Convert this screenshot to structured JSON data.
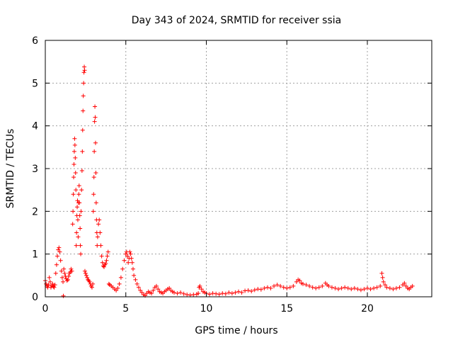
{
  "chart_data": {
    "type": "scatter",
    "title": "Day 343 of 2024, SRMTID for receiver ssia",
    "xlabel": "GPS time / hours",
    "ylabel": "SRMTID / TECUs",
    "xlim": [
      0,
      24
    ],
    "ylim": [
      0,
      6
    ],
    "xticks": [
      0,
      5,
      10,
      15,
      20
    ],
    "yticks": [
      0,
      1,
      2,
      3,
      4,
      5,
      6
    ],
    "grid": true,
    "marker": "+",
    "series": [
      {
        "name": "SRMTID",
        "color": "#ff0000",
        "points": [
          [
            0.0,
            0.38
          ],
          [
            0.05,
            0.3
          ],
          [
            0.1,
            0.25
          ],
          [
            0.15,
            0.22
          ],
          [
            0.2,
            0.28
          ],
          [
            0.25,
            0.45
          ],
          [
            0.3,
            0.35
          ],
          [
            0.35,
            0.22
          ],
          [
            0.4,
            0.26
          ],
          [
            0.45,
            0.3
          ],
          [
            0.5,
            0.24
          ],
          [
            0.55,
            0.22
          ],
          [
            0.6,
            0.28
          ],
          [
            0.65,
            0.55
          ],
          [
            0.7,
            0.75
          ],
          [
            0.75,
            0.95
          ],
          [
            0.8,
            1.1
          ],
          [
            0.85,
            1.15
          ],
          [
            0.9,
            1.05
          ],
          [
            0.95,
            0.85
          ],
          [
            1.0,
            0.6
          ],
          [
            1.05,
            0.45
          ],
          [
            1.1,
            0.35
          ],
          [
            1.12,
            0.02
          ],
          [
            1.15,
            0.65
          ],
          [
            1.2,
            0.55
          ],
          [
            1.25,
            0.48
          ],
          [
            1.3,
            0.42
          ],
          [
            1.35,
            0.38
          ],
          [
            1.4,
            0.4
          ],
          [
            1.45,
            0.48
          ],
          [
            1.5,
            0.55
          ],
          [
            1.55,
            0.58
          ],
          [
            1.6,
            0.65
          ],
          [
            1.65,
            0.6
          ],
          [
            1.7,
            1.7
          ],
          [
            1.72,
            2.0
          ],
          [
            1.74,
            2.4
          ],
          [
            1.76,
            2.8
          ],
          [
            1.78,
            3.1
          ],
          [
            1.8,
            3.4
          ],
          [
            1.82,
            3.7
          ],
          [
            1.84,
            3.55
          ],
          [
            1.86,
            3.25
          ],
          [
            1.88,
            2.9
          ],
          [
            1.9,
            2.5
          ],
          [
            1.92,
            1.2
          ],
          [
            1.94,
            1.5
          ],
          [
            1.96,
            1.9
          ],
          [
            1.98,
            2.1
          ],
          [
            2.0,
            2.25
          ],
          [
            2.02,
            1.8
          ],
          [
            2.04,
            1.4
          ],
          [
            2.06,
            2.2
          ],
          [
            2.08,
            2.4
          ],
          [
            2.1,
            2.6
          ],
          [
            2.12,
            2.2
          ],
          [
            2.14,
            1.9
          ],
          [
            2.16,
            1.6
          ],
          [
            2.18,
            1.2
          ],
          [
            2.2,
            1.0
          ],
          [
            2.22,
            2.0
          ],
          [
            2.25,
            2.5
          ],
          [
            2.28,
            2.95
          ],
          [
            2.3,
            3.4
          ],
          [
            2.32,
            3.9
          ],
          [
            2.34,
            4.35
          ],
          [
            2.36,
            4.7
          ],
          [
            2.38,
            5.0
          ],
          [
            2.4,
            5.25
          ],
          [
            2.42,
            5.38
          ],
          [
            2.44,
            5.3
          ],
          [
            2.46,
            0.6
          ],
          [
            2.5,
            0.55
          ],
          [
            2.55,
            0.5
          ],
          [
            2.6,
            0.45
          ],
          [
            2.65,
            0.4
          ],
          [
            2.7,
            0.38
          ],
          [
            2.75,
            0.35
          ],
          [
            2.8,
            0.3
          ],
          [
            2.85,
            0.25
          ],
          [
            2.9,
            0.22
          ],
          [
            2.95,
            0.3
          ],
          [
            2.98,
            2.0
          ],
          [
            3.0,
            2.4
          ],
          [
            3.02,
            2.8
          ],
          [
            3.04,
            3.4
          ],
          [
            3.06,
            4.1
          ],
          [
            3.08,
            4.45
          ],
          [
            3.1,
            4.2
          ],
          [
            3.12,
            3.6
          ],
          [
            3.14,
            2.9
          ],
          [
            3.16,
            2.2
          ],
          [
            3.18,
            1.8
          ],
          [
            3.2,
            1.5
          ],
          [
            3.22,
            1.2
          ],
          [
            3.25,
            1.4
          ],
          [
            3.3,
            1.7
          ],
          [
            3.35,
            1.8
          ],
          [
            3.4,
            1.5
          ],
          [
            3.45,
            1.2
          ],
          [
            3.5,
            0.95
          ],
          [
            3.55,
            0.8
          ],
          [
            3.6,
            0.72
          ],
          [
            3.65,
            0.7
          ],
          [
            3.7,
            0.75
          ],
          [
            3.75,
            0.78
          ],
          [
            3.8,
            0.85
          ],
          [
            3.85,
            0.95
          ],
          [
            3.9,
            1.05
          ],
          [
            3.95,
            0.3
          ],
          [
            4.0,
            0.28
          ],
          [
            4.1,
            0.25
          ],
          [
            4.2,
            0.22
          ],
          [
            4.3,
            0.18
          ],
          [
            4.4,
            0.15
          ],
          [
            4.5,
            0.2
          ],
          [
            4.6,
            0.3
          ],
          [
            4.7,
            0.45
          ],
          [
            4.8,
            0.65
          ],
          [
            4.9,
            0.85
          ],
          [
            5.0,
            1.0
          ],
          [
            5.05,
            1.05
          ],
          [
            5.1,
            0.95
          ],
          [
            5.15,
            0.8
          ],
          [
            5.2,
            0.9
          ],
          [
            5.25,
            1.05
          ],
          [
            5.3,
            1.0
          ],
          [
            5.35,
            0.9
          ],
          [
            5.4,
            0.8
          ],
          [
            5.45,
            0.65
          ],
          [
            5.5,
            0.5
          ],
          [
            5.6,
            0.4
          ],
          [
            5.7,
            0.3
          ],
          [
            5.8,
            0.22
          ],
          [
            5.9,
            0.15
          ],
          [
            6.0,
            0.1
          ],
          [
            6.1,
            0.05
          ],
          [
            6.2,
            0.03
          ],
          [
            6.3,
            0.08
          ],
          [
            6.4,
            0.12
          ],
          [
            6.5,
            0.1
          ],
          [
            6.6,
            0.08
          ],
          [
            6.7,
            0.15
          ],
          [
            6.8,
            0.22
          ],
          [
            6.9,
            0.25
          ],
          [
            7.0,
            0.18
          ],
          [
            7.1,
            0.12
          ],
          [
            7.2,
            0.1
          ],
          [
            7.3,
            0.08
          ],
          [
            7.4,
            0.12
          ],
          [
            7.5,
            0.15
          ],
          [
            7.6,
            0.18
          ],
          [
            7.7,
            0.2
          ],
          [
            7.8,
            0.15
          ],
          [
            7.9,
            0.12
          ],
          [
            8.0,
            0.1
          ],
          [
            8.2,
            0.08
          ],
          [
            8.4,
            0.1
          ],
          [
            8.6,
            0.07
          ],
          [
            8.8,
            0.05
          ],
          [
            9.0,
            0.04
          ],
          [
            9.2,
            0.05
          ],
          [
            9.4,
            0.06
          ],
          [
            9.5,
            0.08
          ],
          [
            9.55,
            0.22
          ],
          [
            9.6,
            0.25
          ],
          [
            9.7,
            0.18
          ],
          [
            9.8,
            0.12
          ],
          [
            9.9,
            0.1
          ],
          [
            10.0,
            0.08
          ],
          [
            10.2,
            0.06
          ],
          [
            10.4,
            0.08
          ],
          [
            10.6,
            0.07
          ],
          [
            10.8,
            0.06
          ],
          [
            11.0,
            0.08
          ],
          [
            11.2,
            0.07
          ],
          [
            11.4,
            0.1
          ],
          [
            11.6,
            0.08
          ],
          [
            11.8,
            0.1
          ],
          [
            12.0,
            0.12
          ],
          [
            12.2,
            0.1
          ],
          [
            12.4,
            0.14
          ],
          [
            12.6,
            0.15
          ],
          [
            12.8,
            0.13
          ],
          [
            13.0,
            0.16
          ],
          [
            13.2,
            0.18
          ],
          [
            13.4,
            0.17
          ],
          [
            13.6,
            0.2
          ],
          [
            13.8,
            0.22
          ],
          [
            14.0,
            0.2
          ],
          [
            14.2,
            0.25
          ],
          [
            14.4,
            0.28
          ],
          [
            14.6,
            0.25
          ],
          [
            14.8,
            0.22
          ],
          [
            15.0,
            0.2
          ],
          [
            15.2,
            0.22
          ],
          [
            15.4,
            0.25
          ],
          [
            15.6,
            0.35
          ],
          [
            15.7,
            0.4
          ],
          [
            15.8,
            0.38
          ],
          [
            15.9,
            0.32
          ],
          [
            16.0,
            0.3
          ],
          [
            16.2,
            0.28
          ],
          [
            16.4,
            0.25
          ],
          [
            16.6,
            0.22
          ],
          [
            16.8,
            0.2
          ],
          [
            17.0,
            0.22
          ],
          [
            17.2,
            0.25
          ],
          [
            17.4,
            0.32
          ],
          [
            17.5,
            0.28
          ],
          [
            17.6,
            0.25
          ],
          [
            17.8,
            0.22
          ],
          [
            18.0,
            0.2
          ],
          [
            18.2,
            0.18
          ],
          [
            18.4,
            0.2
          ],
          [
            18.6,
            0.22
          ],
          [
            18.8,
            0.2
          ],
          [
            19.0,
            0.18
          ],
          [
            19.2,
            0.2
          ],
          [
            19.4,
            0.18
          ],
          [
            19.6,
            0.16
          ],
          [
            19.8,
            0.18
          ],
          [
            20.0,
            0.2
          ],
          [
            20.2,
            0.18
          ],
          [
            20.4,
            0.2
          ],
          [
            20.6,
            0.22
          ],
          [
            20.8,
            0.25
          ],
          [
            20.9,
            0.55
          ],
          [
            20.95,
            0.45
          ],
          [
            21.0,
            0.35
          ],
          [
            21.1,
            0.28
          ],
          [
            21.2,
            0.22
          ],
          [
            21.4,
            0.2
          ],
          [
            21.6,
            0.18
          ],
          [
            21.8,
            0.2
          ],
          [
            22.0,
            0.22
          ],
          [
            22.2,
            0.28
          ],
          [
            22.3,
            0.32
          ],
          [
            22.4,
            0.25
          ],
          [
            22.5,
            0.2
          ],
          [
            22.6,
            0.18
          ],
          [
            22.7,
            0.22
          ],
          [
            22.8,
            0.25
          ]
        ]
      }
    ]
  }
}
